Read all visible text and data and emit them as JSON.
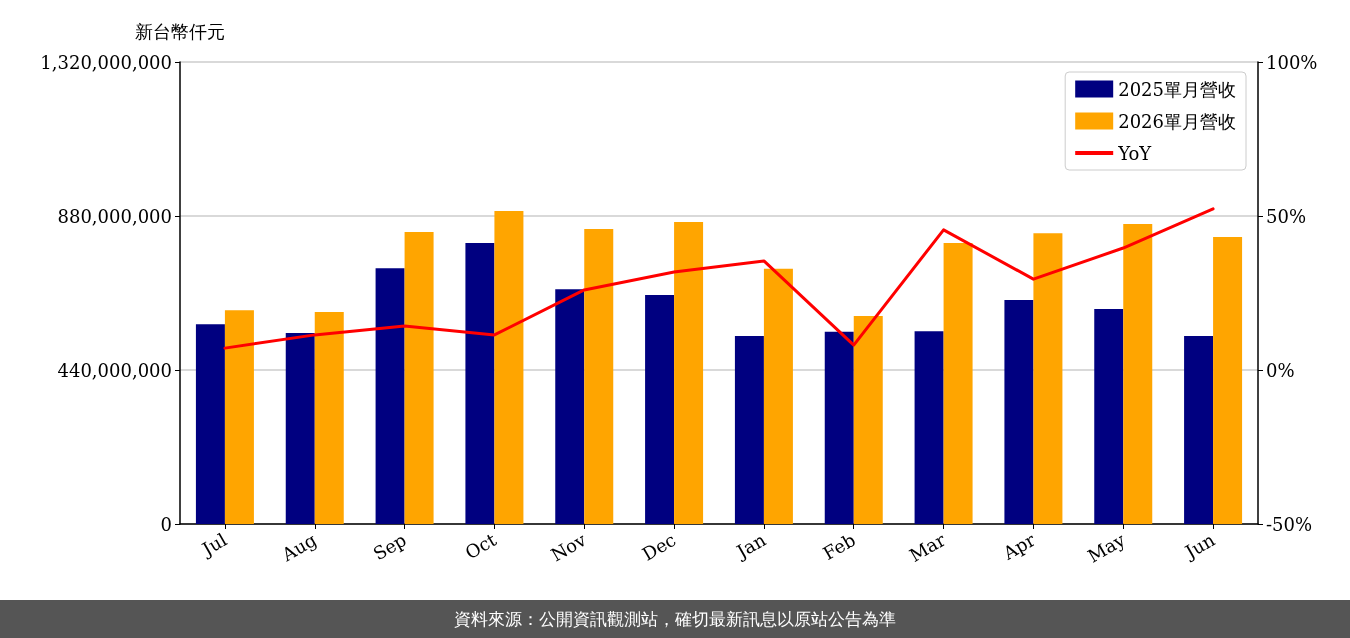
{
  "chart_data": {
    "type": "bar",
    "ylabel": "新台幣仟元",
    "categories": [
      "Jul",
      "Aug",
      "Sep",
      "Oct",
      "Nov",
      "Dec",
      "Jan",
      "Feb",
      "Mar",
      "Apr",
      "May",
      "Jun"
    ],
    "series": [
      {
        "name": "2025單月營收",
        "color": "#000080",
        "values": [
          571000000,
          546000000,
          731000000,
          803000000,
          671000000,
          654000000,
          537000000,
          549000000,
          551000000,
          640000000,
          614000000,
          537000000
        ]
      },
      {
        "name": "2026單月營收",
        "color": "#ffa500",
        "values": [
          611000000,
          606000000,
          834000000,
          894000000,
          843000000,
          863000000,
          729000000,
          594000000,
          803000000,
          831000000,
          857000000,
          820000000
        ]
      },
      {
        "name": "YoY",
        "type": "line",
        "axis": "y2",
        "color": "#ff0000",
        "values": [
          7.1,
          11.4,
          14.3,
          11.4,
          26,
          31.8,
          35.4,
          8.1,
          45.5,
          29.5,
          39.6,
          52.3
        ]
      }
    ],
    "ylim": [
      0,
      1320000000
    ],
    "yticks": [
      {
        "value": 0,
        "label": "0"
      },
      {
        "value": 440000000,
        "label": "440,000,000"
      },
      {
        "value": 880000000,
        "label": "880,000,000"
      },
      {
        "value": 1320000000,
        "label": "1,320,000,000"
      }
    ],
    "y2lim": [
      -50,
      100
    ],
    "y2ticks": [
      {
        "value": -50,
        "label": "-50%"
      },
      {
        "value": 0,
        "label": "0%"
      },
      {
        "value": 50,
        "label": "50%"
      },
      {
        "value": 100,
        "label": "100%"
      }
    ],
    "grid": "y",
    "legend": "top right",
    "marker": "none",
    "line_style": "solid",
    "annotations": [
      "資料來源：公開資訊觀測站，確切最新訊息以原站公告為準"
    ]
  }
}
